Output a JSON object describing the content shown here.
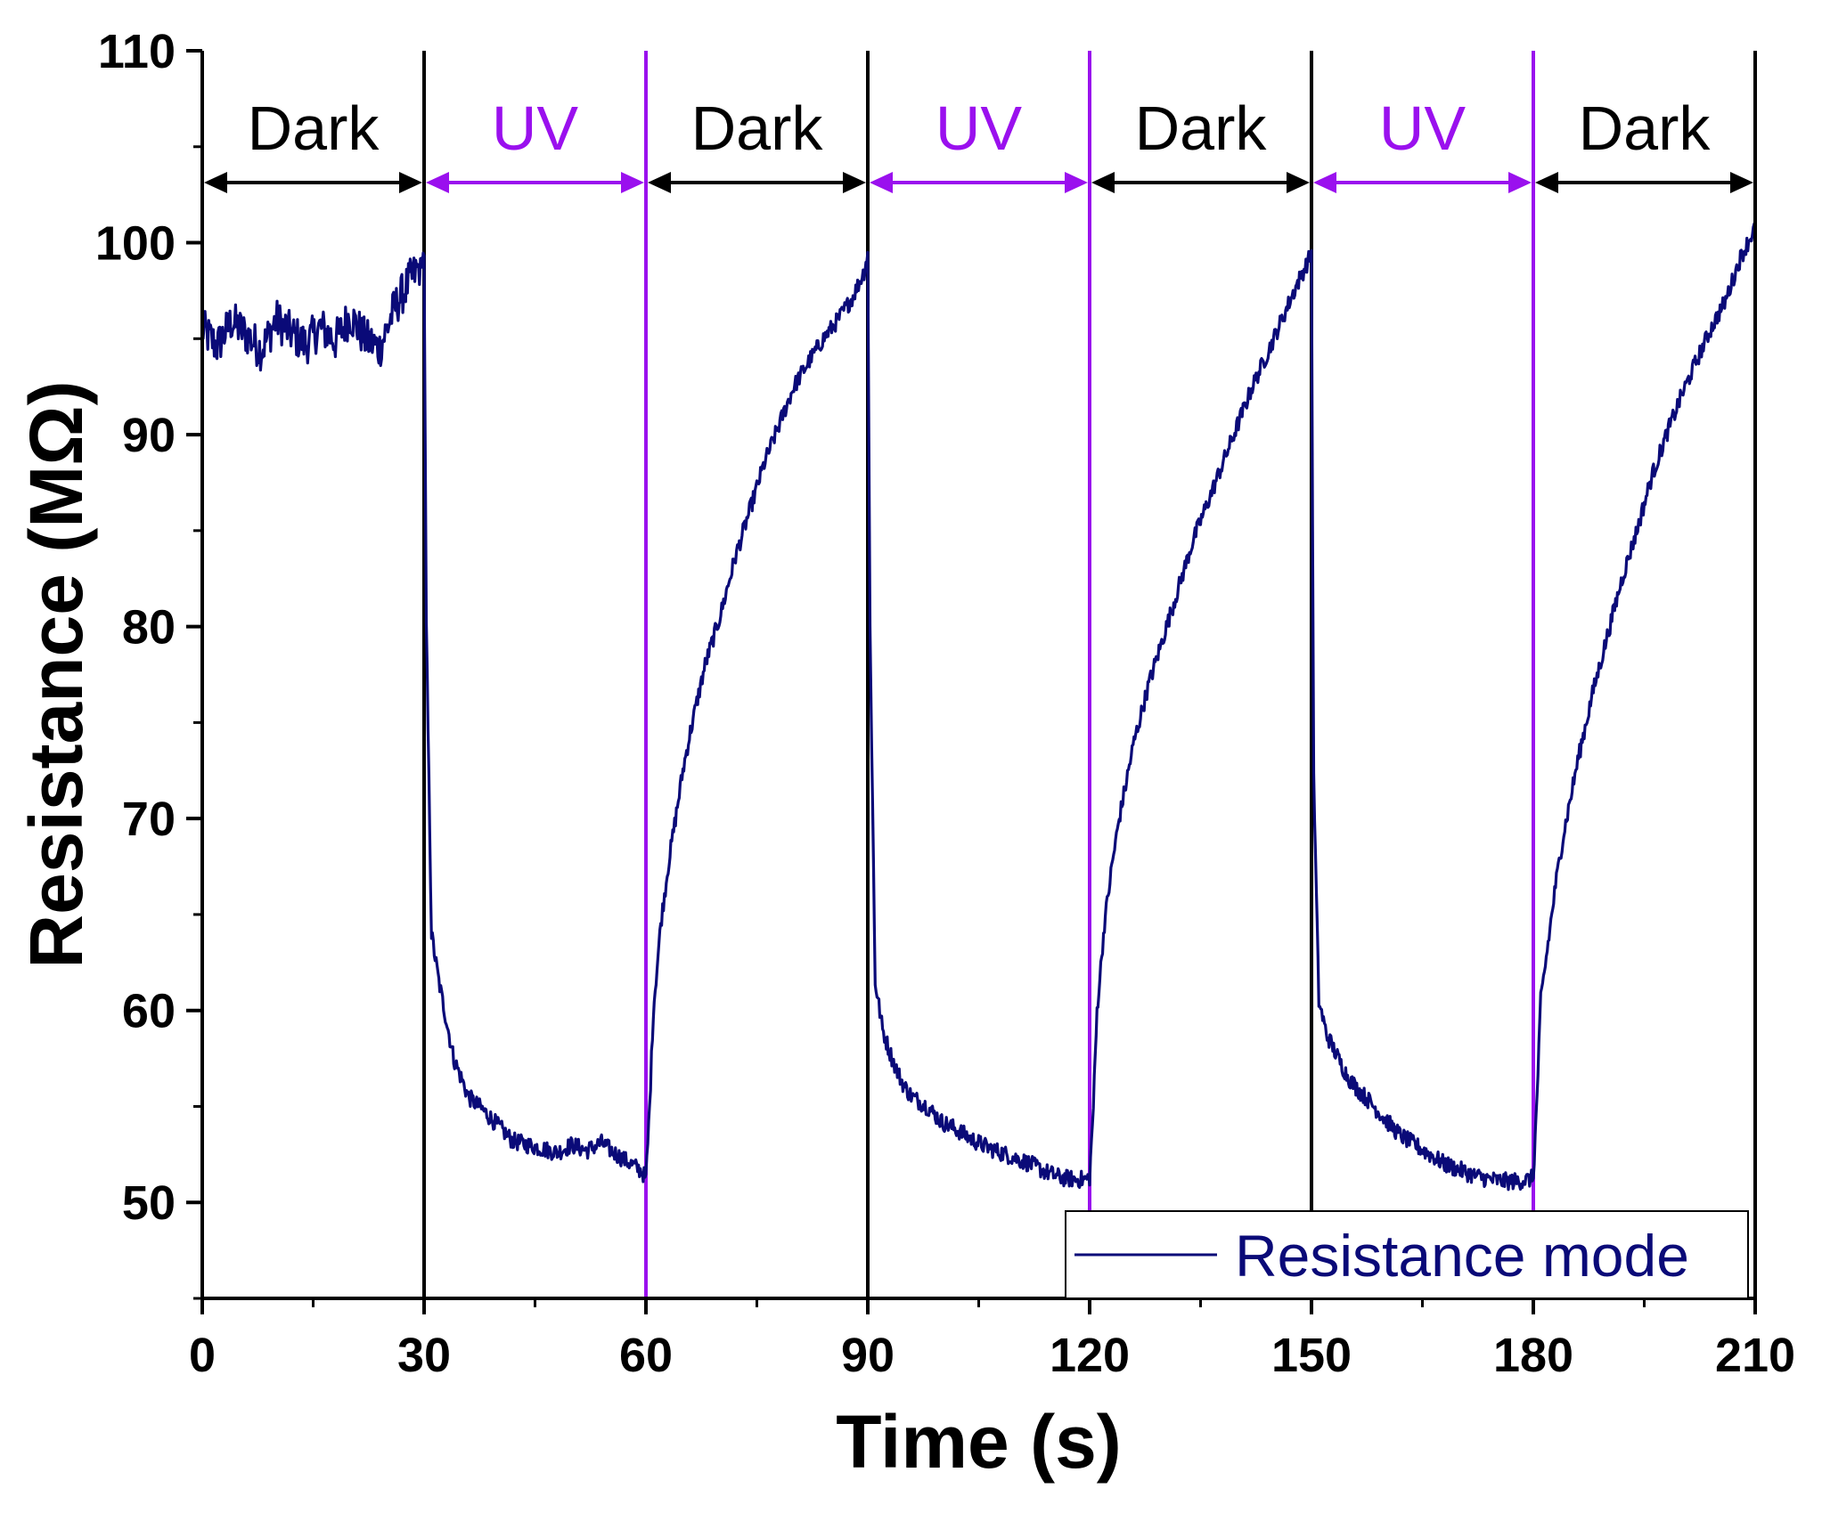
{
  "chart_data": {
    "type": "line",
    "xlabel": "Time (s)",
    "ylabel": "Resistance (MΩ)",
    "xlim": [
      0,
      210
    ],
    "ylim": [
      45,
      110
    ],
    "xticks": [
      0,
      30,
      60,
      90,
      120,
      150,
      180,
      210
    ],
    "yticks": [
      50,
      60,
      70,
      80,
      90,
      100,
      110
    ],
    "grid": false,
    "legend": {
      "placement": "bottom-right",
      "entries": [
        "Resistance mode"
      ]
    },
    "colors": {
      "series": "#0a0a78",
      "dark": "#000000",
      "uv": "#9a10ee"
    },
    "periods": [
      {
        "label": "Dark",
        "kind": "dark",
        "start": 0,
        "end": 30
      },
      {
        "label": "UV",
        "kind": "uv",
        "start": 30,
        "end": 60
      },
      {
        "label": "Dark",
        "kind": "dark",
        "start": 60,
        "end": 90
      },
      {
        "label": "UV",
        "kind": "uv",
        "start": 90,
        "end": 120
      },
      {
        "label": "Dark",
        "kind": "dark",
        "start": 120,
        "end": 150
      },
      {
        "label": "UV",
        "kind": "uv",
        "start": 150,
        "end": 180
      },
      {
        "label": "Dark",
        "kind": "dark",
        "start": 180,
        "end": 210
      }
    ],
    "boundaries": [
      {
        "x": 30,
        "kind": "dark"
      },
      {
        "x": 60,
        "kind": "uv"
      },
      {
        "x": 90,
        "kind": "dark"
      },
      {
        "x": 120,
        "kind": "uv"
      },
      {
        "x": 150,
        "kind": "dark"
      },
      {
        "x": 180,
        "kind": "uv"
      }
    ],
    "series": [
      {
        "name": "Resistance mode",
        "color": "#0a0a78",
        "x": [
          0,
          2,
          4,
          6,
          8,
          10,
          12,
          14,
          16,
          18,
          20,
          22,
          24,
          26,
          28,
          29.5,
          30,
          30.3,
          31,
          32,
          33,
          34,
          35,
          36,
          38,
          40,
          42,
          44,
          46,
          48,
          50,
          52,
          54,
          56,
          58,
          59.5,
          60,
          60.5,
          61,
          62,
          63,
          64,
          65,
          66,
          68,
          70,
          72,
          74,
          76,
          78,
          80,
          82,
          84,
          86,
          88,
          89.5,
          90,
          90.3,
          91,
          92,
          93,
          94,
          95,
          96,
          98,
          100,
          102,
          104,
          106,
          108,
          110,
          112,
          114,
          116,
          118,
          119.5,
          120,
          120.5,
          121,
          122,
          123,
          124,
          125,
          126,
          128,
          130,
          132,
          134,
          136,
          138,
          140,
          142,
          144,
          146,
          148,
          149.5,
          150,
          150.3,
          151,
          152,
          153,
          154,
          155,
          156,
          158,
          160,
          162,
          164,
          166,
          168,
          170,
          172,
          174,
          176,
          178,
          179.5,
          180,
          180.5,
          181,
          182,
          183,
          184,
          185,
          186,
          188,
          190,
          192,
          194,
          196,
          198,
          200,
          202,
          204,
          206,
          208,
          210
        ],
        "values": [
          95.5,
          94.6,
          95.9,
          95.2,
          94.4,
          96.0,
          95.3,
          94.7,
          95.6,
          94.9,
          96.2,
          95.0,
          94.5,
          96.6,
          98.0,
          98.8,
          99.5,
          80.0,
          64.0,
          61.5,
          59.5,
          57.5,
          56.5,
          55.5,
          54.8,
          54.0,
          53.2,
          53.0,
          52.8,
          52.6,
          53.0,
          52.7,
          53.1,
          52.5,
          52.0,
          51.6,
          51.2,
          55.0,
          60.0,
          64.5,
          67.5,
          70.0,
          72.5,
          74.5,
          78.0,
          80.5,
          83.5,
          86.0,
          88.5,
          90.5,
          92.5,
          93.8,
          95.0,
          96.0,
          97.2,
          98.5,
          99.5,
          80.0,
          61.5,
          59.0,
          57.8,
          56.8,
          56.0,
          55.5,
          55.0,
          54.2,
          53.8,
          53.3,
          52.9,
          52.6,
          52.3,
          52.0,
          51.6,
          51.3,
          51.2,
          51.2,
          51.3,
          55.0,
          60.0,
          64.5,
          67.5,
          70.0,
          72.0,
          74.0,
          77.0,
          79.5,
          82.0,
          84.5,
          86.5,
          88.5,
          90.5,
          92.5,
          94.2,
          96.0,
          97.8,
          99.0,
          99.5,
          72.0,
          60.5,
          58.8,
          58.0,
          57.2,
          56.5,
          56.0,
          55.2,
          54.3,
          53.5,
          53.0,
          52.5,
          52.0,
          51.7,
          51.4,
          51.2,
          51.1,
          51.1,
          51.2,
          51.3,
          55.5,
          60.5,
          63.5,
          66.5,
          69.0,
          71.0,
          73.0,
          76.5,
          79.5,
          82.5,
          85.0,
          87.8,
          90.0,
          92.0,
          93.8,
          95.5,
          97.0,
          99.2,
          100.8
        ]
      }
    ]
  }
}
